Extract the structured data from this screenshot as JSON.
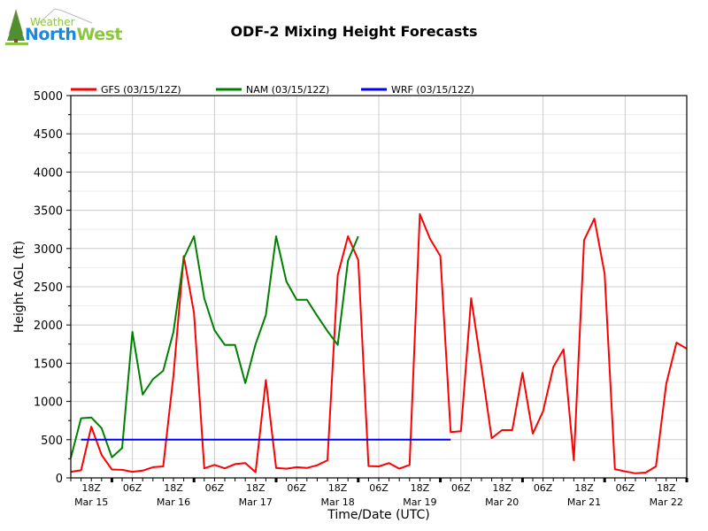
{
  "logo": {
    "line1": "Weather",
    "line2a": "North",
    "line2b": "West"
  },
  "chart_data": {
    "type": "line",
    "title": "ODF-2 Mixing Height Forecasts",
    "xlabel": "Time/Date (UTC)",
    "ylabel": "Height AGL (ft)",
    "ylim": [
      0,
      5000
    ],
    "yticks": [
      0,
      500,
      1000,
      1500,
      2000,
      2500,
      3000,
      3500,
      4000,
      4500,
      5000
    ],
    "xlim_hours": [
      0,
      180
    ],
    "x_start": "Mar 15 12Z",
    "x_step_hours": 3,
    "xtick_labels": [
      {
        "hour": 6,
        "label": "18Z"
      },
      {
        "hour": 18,
        "label": "06Z"
      },
      {
        "hour": 30,
        "label": "18Z"
      },
      {
        "hour": 42,
        "label": "06Z"
      },
      {
        "hour": 54,
        "label": "18Z"
      },
      {
        "hour": 66,
        "label": "06Z"
      },
      {
        "hour": 78,
        "label": "18Z"
      },
      {
        "hour": 90,
        "label": "06Z"
      },
      {
        "hour": 102,
        "label": "18Z"
      },
      {
        "hour": 114,
        "label": "06Z"
      },
      {
        "hour": 126,
        "label": "18Z"
      },
      {
        "hour": 138,
        "label": "06Z"
      },
      {
        "hour": 150,
        "label": "18Z"
      },
      {
        "hour": 162,
        "label": "06Z"
      },
      {
        "hour": 174,
        "label": "18Z"
      }
    ],
    "date_labels": [
      {
        "hour": 6,
        "label": "Mar 15"
      },
      {
        "hour": 30,
        "label": "Mar 16"
      },
      {
        "hour": 54,
        "label": "Mar 17"
      },
      {
        "hour": 78,
        "label": "Mar 18"
      },
      {
        "hour": 102,
        "label": "Mar 19"
      },
      {
        "hour": 126,
        "label": "Mar 20"
      },
      {
        "hour": 150,
        "label": "Mar 21"
      },
      {
        "hour": 174,
        "label": "Mar 22"
      }
    ],
    "grid": true,
    "legend_position": "top",
    "series": [
      {
        "name": "GFS (03/15/12Z)",
        "color": "#ff0000",
        "start_hour": 0,
        "values": [
          80,
          100,
          670,
          300,
          110,
          105,
          80,
          95,
          140,
          150,
          1340,
          2900,
          2160,
          125,
          170,
          125,
          180,
          195,
          75,
          1280,
          130,
          120,
          140,
          130,
          165,
          230,
          2650,
          3160,
          2850,
          155,
          150,
          195,
          120,
          170,
          3450,
          3125,
          2900,
          600,
          610,
          2350,
          1450,
          520,
          625,
          625,
          1375,
          580,
          870,
          1450,
          1680,
          230,
          3110,
          3390,
          2670,
          115,
          85,
          60,
          70,
          150,
          1230,
          1770,
          1690
        ]
      },
      {
        "name": "NAM (03/15/12Z)",
        "color": "#008000",
        "start_hour": 0,
        "values": [
          260,
          780,
          790,
          650,
          270,
          390,
          1910,
          1090,
          1290,
          1400,
          1910,
          2870,
          3160,
          2350,
          1930,
          1740,
          1740,
          1240,
          1750,
          2130,
          3160,
          2570,
          2330,
          2330,
          2120,
          1920,
          1740,
          2840,
          3160
        ]
      },
      {
        "name": "WRF (03/15/12Z)",
        "color": "#0000ff",
        "start_hour": 3,
        "values": [
          500,
          500,
          500,
          500,
          500,
          500,
          500,
          500,
          500,
          500,
          500,
          500,
          500,
          500,
          500,
          500,
          500,
          500,
          500,
          500,
          500,
          500,
          500,
          500,
          500,
          500,
          500,
          500,
          500,
          500,
          500,
          500,
          500,
          500,
          500,
          500,
          500
        ]
      }
    ]
  }
}
